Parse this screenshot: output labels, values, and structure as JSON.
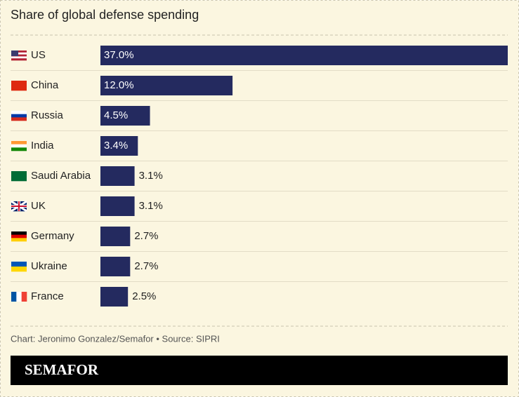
{
  "chart_data": {
    "type": "bar",
    "orientation": "horizontal",
    "title": "Share of global defense spending",
    "categories": [
      "US",
      "China",
      "Russia",
      "India",
      "Saudi Arabia",
      "UK",
      "Germany",
      "Ukraine",
      "France"
    ],
    "values": [
      37.0,
      12.0,
      4.5,
      3.4,
      3.1,
      3.1,
      2.7,
      2.7,
      2.5
    ],
    "value_labels": [
      "37.0%",
      "12.0%",
      "4.5%",
      "3.4%",
      "3.1%",
      "3.1%",
      "2.7%",
      "2.7%",
      "2.5%"
    ],
    "color": "#242a5f"
  },
  "footer": {
    "credit": "Chart: Jeronimo Gonzalez/Semafor • Source: SIPRI",
    "logo": "SEMAFOR"
  }
}
